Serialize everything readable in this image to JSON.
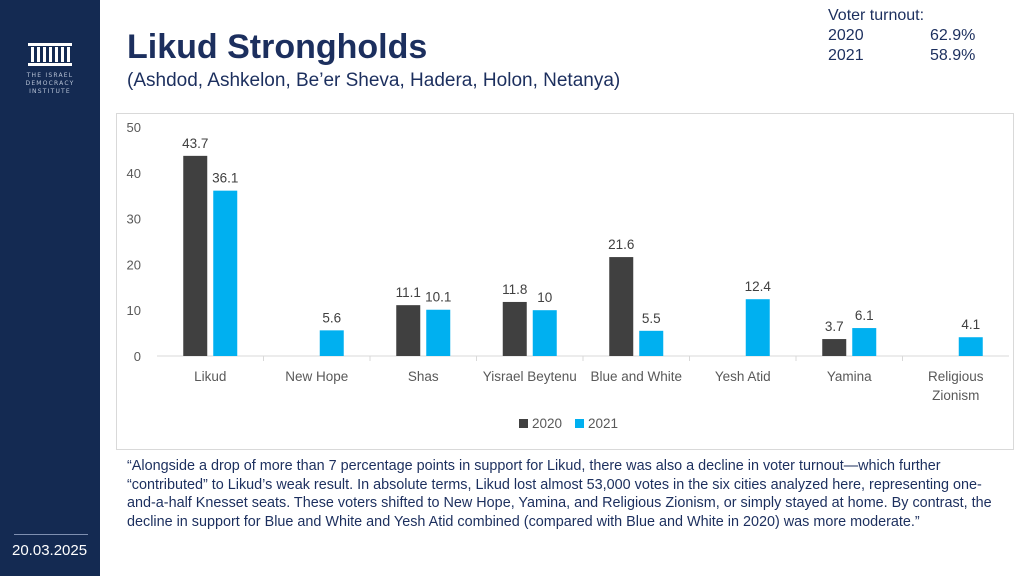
{
  "branding": {
    "logo_text": "THE ISRAEL DEMOCRACY INSTITUTE"
  },
  "date": "20.03.2025",
  "title": "Likud Strongholds",
  "subtitle": "(Ashdod, Ashkelon, Be’er Sheva, Hadera, Holon, Netanya)",
  "turnout": {
    "label": "Voter turnout:",
    "rows": [
      {
        "year": "2020",
        "value": "62.9%"
      },
      {
        "year": "2021",
        "value": "58.9%"
      }
    ]
  },
  "colors": {
    "s2020": "#404040",
    "s2021": "#00b0f0",
    "brand": "#142a52",
    "text": "#1c2f5e"
  },
  "chart_data": {
    "type": "bar",
    "categories": [
      "Likud",
      "New Hope",
      "Shas",
      "Yisrael Beytenu",
      "Blue and White",
      "Yesh Atid",
      "Yamina",
      "Religious Zionism"
    ],
    "series": [
      {
        "name": "2020",
        "values": [
          43.7,
          null,
          11.1,
          11.8,
          21.6,
          null,
          3.7,
          null
        ]
      },
      {
        "name": "2021",
        "values": [
          36.1,
          5.6,
          10.1,
          10,
          5.5,
          12.4,
          6.1,
          4.1
        ]
      }
    ],
    "ylim": [
      0,
      50
    ],
    "yticks": [
      0,
      10,
      20,
      30,
      40,
      50
    ],
    "legend": "bottom",
    "title": "",
    "xlabel": "",
    "ylabel": ""
  },
  "quote": "“Alongside a drop of more than 7 percentage points in support for Likud, there was also a decline in voter turnout—which further “contributed” to Likud’s weak result. In absolute terms, Likud lost almost 53,000 votes in the six cities analyzed here, representing one-and-a-half Knesset seats. These voters shifted to New Hope, Yamina, and Religious Zionism, or simply stayed at home. By contrast, the decline in support for Blue and White and Yesh Atid combined (compared with Blue and White in 2020) was more moderate.”"
}
